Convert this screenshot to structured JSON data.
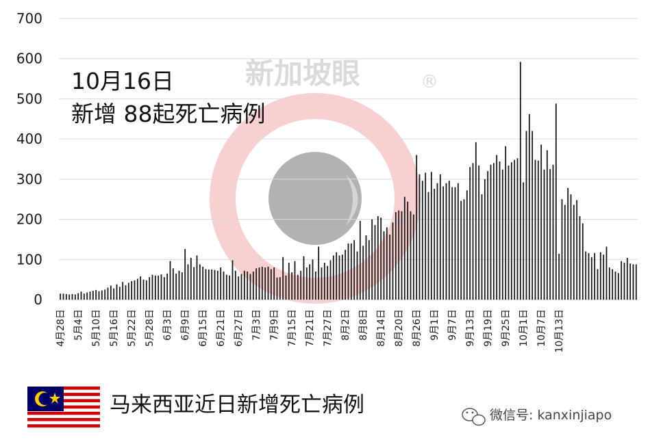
{
  "chart_data": {
    "type": "bar",
    "title": "马来西亚近日新增死亡病例",
    "xlabel": "",
    "ylabel": "",
    "ylim": [
      0,
      700
    ],
    "yticks": [
      0,
      100,
      200,
      300,
      400,
      500,
      600,
      700
    ],
    "grid": true,
    "x_tick_labels": [
      "4月28日",
      "5月4日",
      "5月10日",
      "5月16日",
      "5月22日",
      "5月28日",
      "6月3日",
      "6月9日",
      "6月15日",
      "6月21日",
      "6月27日",
      "7月3日",
      "7月9日",
      "7月15日",
      "7月21日",
      "7月27日",
      "8月2日",
      "8月8日",
      "8月14日",
      "8月20日",
      "8月26日",
      "9月1日",
      "9月7日",
      "9月13日",
      "9月19日",
      "9月25日",
      "10月1日",
      "10月7日",
      "10月13日"
    ],
    "start_label": "4月28日",
    "values": [
      15,
      15,
      14,
      13,
      14,
      13,
      16,
      20,
      15,
      18,
      20,
      22,
      24,
      21,
      23,
      25,
      30,
      35,
      28,
      38,
      32,
      44,
      36,
      42,
      46,
      48,
      52,
      58,
      50,
      48,
      56,
      62,
      60,
      60,
      63,
      56,
      65,
      96,
      78,
      65,
      72,
      68,
      126,
      88,
      104,
      81,
      110,
      88,
      82,
      76,
      75,
      75,
      74,
      72,
      80,
      70,
      62,
      60,
      98,
      72,
      58,
      64,
      72,
      70,
      64,
      70,
      78,
      80,
      82,
      80,
      82,
      76,
      80,
      55,
      56,
      106,
      60,
      92,
      68,
      96,
      62,
      72,
      108,
      80,
      88,
      100,
      70,
      132,
      80,
      92,
      84,
      98,
      110,
      118,
      110,
      112,
      124,
      140,
      140,
      148,
      120,
      196,
      134,
      160,
      148,
      200,
      186,
      208,
      204,
      170,
      180,
      162,
      192,
      218,
      222,
      220,
      256,
      244,
      220,
      212,
      360,
      312,
      296,
      316,
      268,
      318,
      276,
      290,
      312,
      282,
      290,
      296,
      280,
      280,
      290,
      246,
      250,
      272,
      330,
      340,
      392,
      334,
      262,
      300,
      320,
      336,
      340,
      360,
      344,
      324,
      382,
      334,
      342,
      348,
      352,
      592,
      292,
      420,
      462,
      420,
      348,
      346,
      386,
      324,
      372,
      325,
      336,
      488,
      114,
      250,
      236,
      278,
      262,
      236,
      248,
      208,
      190,
      120,
      116,
      106,
      116,
      76,
      118,
      112,
      132,
      80,
      76,
      70,
      66,
      96,
      92,
      104,
      90,
      88,
      88
    ]
  },
  "annotation": {
    "date": "10月16日",
    "text": "新增 88起死亡病例"
  },
  "watermark": {
    "text": "新加坡眼",
    "mark": "®"
  },
  "footer": {
    "caption": "马来西亚近日新增死亡病例",
    "wechat": "微信号: kanxinjiapo"
  },
  "colors": {
    "bar": "#1a1a1a",
    "grid": "#d9d9d9",
    "logo_ring": "#e8555a",
    "logo_center": "#555555",
    "flag_red": "#cc0001",
    "flag_blue": "#010066",
    "flag_yellow": "#ffcc00"
  },
  "icons": [
    "malaysia-flag-icon",
    "wechat-icon",
    "watermark-logo-icon"
  ]
}
